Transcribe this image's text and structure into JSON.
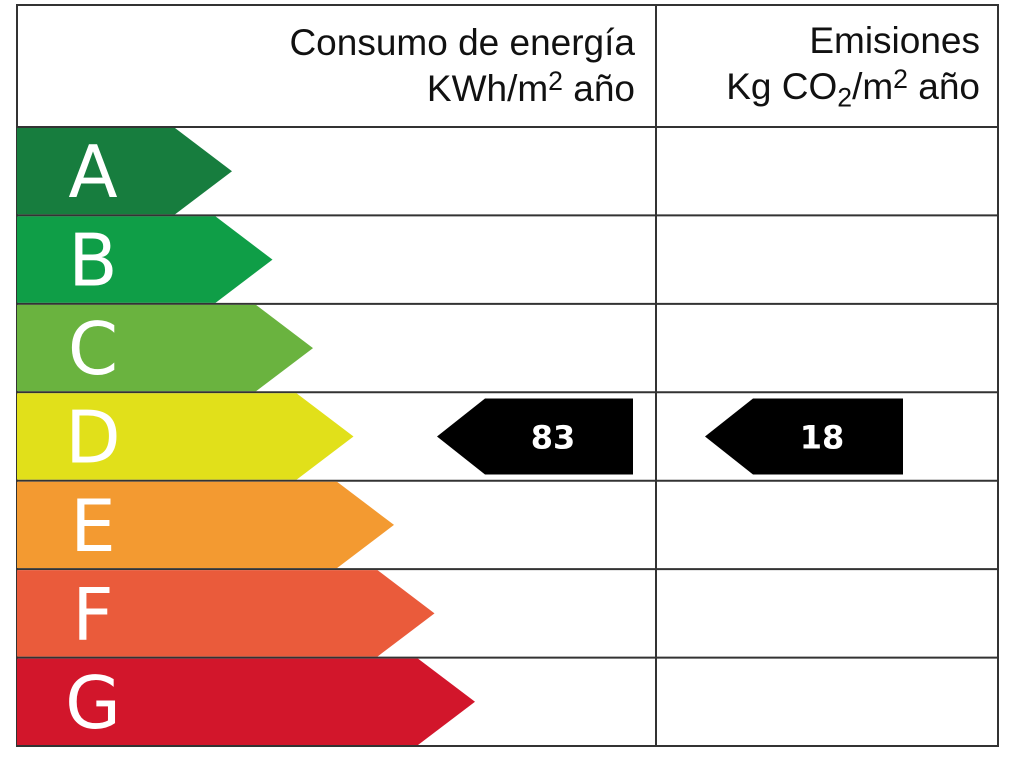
{
  "chart_data": {
    "type": "table",
    "columns": [
      {
        "title": "Consumo de energía",
        "unit": {
          "pre": "KWh/m",
          "sup": "2",
          "post": " año"
        }
      },
      {
        "title": "Emisiones",
        "unit": {
          "pre": "Kg CO",
          "sub": "2",
          "mid": "/m",
          "sup": "2",
          "post": " año"
        }
      }
    ],
    "classes": [
      "A",
      "B",
      "C",
      "D",
      "E",
      "F",
      "G"
    ],
    "class_colors": [
      "#177d3e",
      "#0f9e47",
      "#6ab33f",
      "#e1e01a",
      "#f39a31",
      "#ea5b3b",
      "#d2162b"
    ],
    "ratings": [
      {
        "column": "Consumo de energía",
        "class": "D",
        "value": "83"
      },
      {
        "column": "Emisiones",
        "class": "D",
        "value": "18"
      }
    ]
  }
}
